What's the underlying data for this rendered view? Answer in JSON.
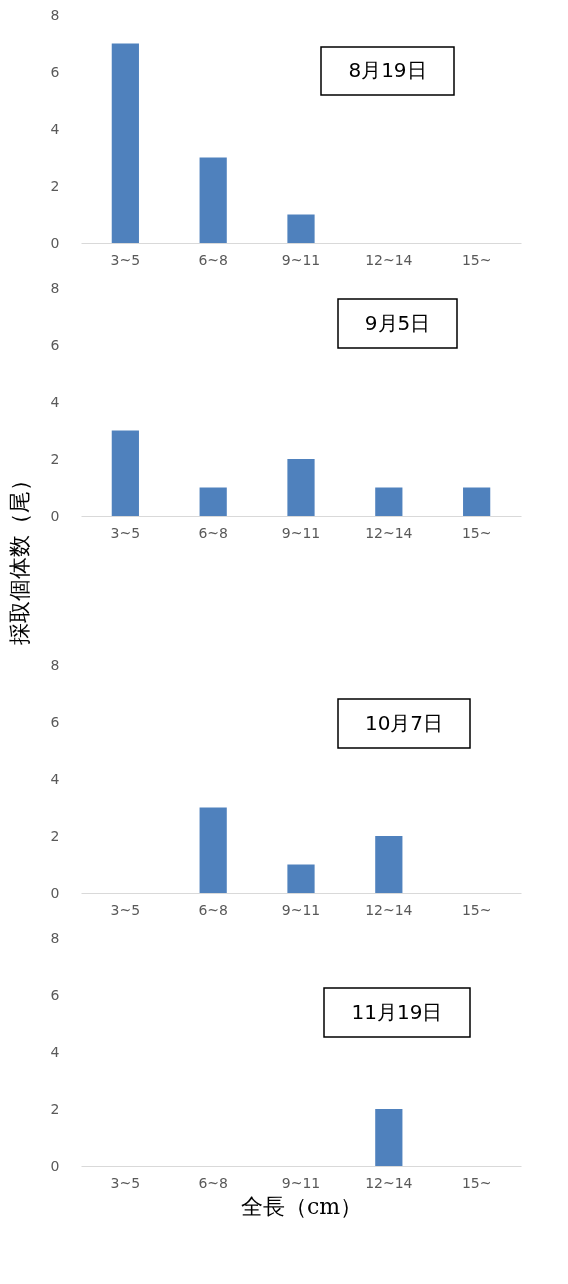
{
  "chart_data": [
    {
      "type": "bar",
      "title": "8月19日",
      "categories": [
        "3~5",
        "6~8",
        "9~11",
        "12~14",
        "15~"
      ],
      "values": [
        7,
        3,
        1,
        0,
        0
      ],
      "color": "#4f81bd",
      "ylim": [
        0,
        8
      ],
      "yticks": [
        0,
        2,
        4,
        6,
        8
      ]
    },
    {
      "type": "bar",
      "title": "9月5日",
      "ylabel": "採取個体数（尾）",
      "categories": [
        "3~5",
        "6~8",
        "9~11",
        "12~14",
        "15~"
      ],
      "values": [
        3,
        1,
        2,
        1,
        1
      ],
      "color": "#4f81bd",
      "ylim": [
        0,
        8
      ],
      "yticks": [
        0,
        2,
        4,
        6,
        8
      ]
    },
    {
      "type": "bar",
      "title": "10月7日",
      "categories": [
        "3~5",
        "6~8",
        "9~11",
        "12~14",
        "15~"
      ],
      "values": [
        0,
        3,
        1,
        2,
        0
      ],
      "color": "#4f81bd",
      "ylim": [
        0,
        8
      ],
      "yticks": [
        0,
        2,
        4,
        6,
        8
      ]
    },
    {
      "type": "bar",
      "title": "11月19日",
      "xlabel": "全長（cm）",
      "categories": [
        "3~5",
        "6~8",
        "9~11",
        "12~14",
        "15~"
      ],
      "values": [
        0,
        0,
        0,
        2,
        0
      ],
      "color": "#4f81bd",
      "ylim": [
        0,
        8
      ],
      "yticks": [
        0,
        2,
        4,
        6,
        8
      ]
    }
  ]
}
